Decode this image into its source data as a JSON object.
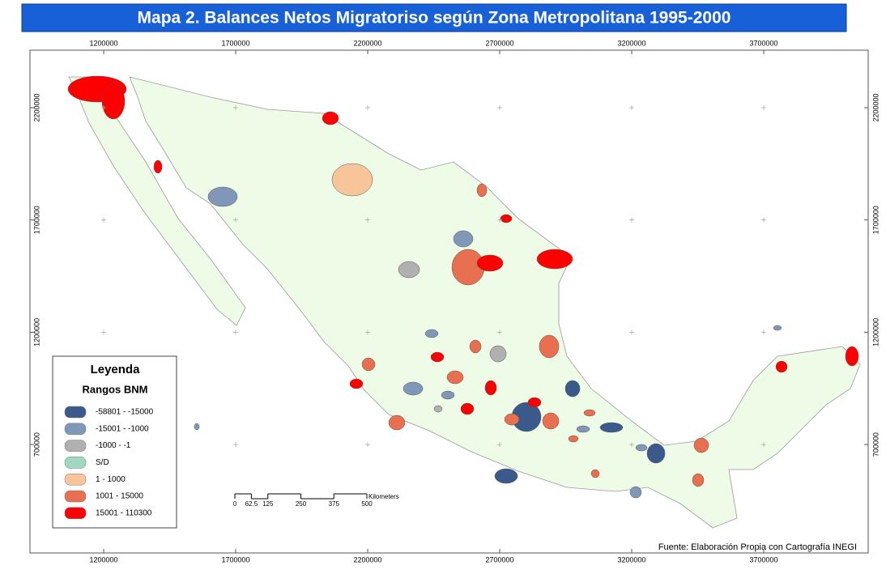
{
  "title": "Mapa 2. Balances Netos Migratoriso según Zona Metropolitana 1995-2000",
  "legend": {
    "title": "Leyenda",
    "subtitle": "Rangos BNM",
    "items": [
      {
        "label": "-58801 - -15000",
        "color": "#3a5a8c"
      },
      {
        "label": "-15001 - -1000",
        "color": "#8098b8"
      },
      {
        "label": "-1000 - -1",
        "color": "#b0b0b0"
      },
      {
        "label": "S/D",
        "color": "#a0d8c0"
      },
      {
        "label": "1 - 1000",
        "color": "#f8c49a"
      },
      {
        "label": "1001 - 15000",
        "color": "#e87050"
      },
      {
        "label": "15001 - 110300",
        "color": "#ff0000"
      }
    ]
  },
  "map": {
    "xticks": [
      1200000,
      1700000,
      2200000,
      2700000,
      3200000,
      3700000
    ],
    "yticks": [
      2200000,
      1700000,
      1200000,
      700000
    ]
  },
  "scale_bar": {
    "ticks": [
      0,
      62.5,
      125,
      250,
      375,
      500
    ],
    "unit": "Kilometers"
  },
  "source": "Fuente: Elaboración Propia con Cartografía INEGI"
}
